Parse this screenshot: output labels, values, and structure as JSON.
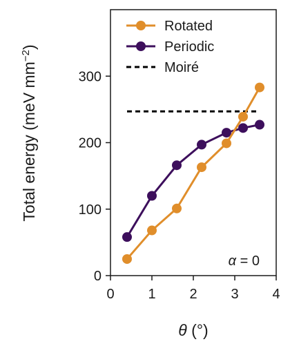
{
  "chart_data": {
    "type": "line",
    "xlabel_symbol": "θ",
    "xlabel_unit": " (°)",
    "ylabel_text": "Total energy (meV mm",
    "ylabel_exp": "−2",
    "ylabel_close": ")",
    "xlim": [
      0,
      4
    ],
    "ylim": [
      0,
      300
    ],
    "xticks": [
      0,
      1,
      2,
      3,
      4
    ],
    "yticks": [
      0,
      100,
      200,
      300
    ],
    "grid": false,
    "legend_position": "top-right",
    "series": [
      {
        "name": "Rotated",
        "color": "#e08e2b",
        "style": "solid-markers",
        "x": [
          0.4,
          1.0,
          1.6,
          2.2,
          2.8,
          3.2,
          3.6
        ],
        "y": [
          25,
          68,
          101,
          163,
          199,
          239,
          283
        ]
      },
      {
        "name": "Periodic",
        "color": "#3d0f5c",
        "style": "solid-markers",
        "x": [
          0.4,
          1.0,
          1.6,
          2.2,
          2.8,
          3.2,
          3.6
        ],
        "y": [
          58,
          120,
          166,
          197,
          215,
          222,
          227
        ]
      },
      {
        "name": "Moiré",
        "color": "#000000",
        "style": "dashed",
        "x": [
          0.4,
          3.6
        ],
        "y": [
          247,
          247
        ]
      }
    ],
    "annotation": {
      "symbol": "α",
      "text": " = 0"
    }
  }
}
